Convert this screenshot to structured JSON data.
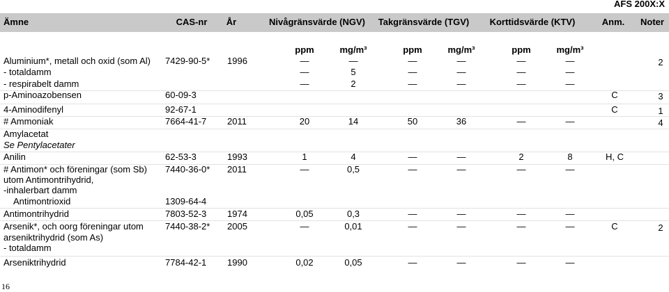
{
  "header": {
    "doc_id": "AFS 200X:X",
    "columns": [
      "Ämne",
      "CAS-nr",
      "År",
      "Nivågränsvärde (NGV)",
      "Takgränsvärde (TGV)",
      "Korttidsvärde (KTV)",
      "Anm.",
      "Noter"
    ],
    "units": [
      "ppm",
      "mg/m³",
      "ppm",
      "mg/m³",
      "ppm",
      "mg/m³"
    ]
  },
  "table": {
    "rows": [
      [
        "Aluminium*, metall och oxid (som Al)",
        "7429-90-5*",
        "1996",
        "—",
        "—",
        "—",
        "—",
        "—",
        "—",
        null,
        "2"
      ],
      [
        "- totaldamm",
        null,
        null,
        "—",
        "5",
        "—",
        "—",
        "—",
        "—",
        null,
        null
      ],
      [
        "- respirabelt damm",
        null,
        null,
        "—",
        "2",
        "—",
        "—",
        "—",
        "—",
        null,
        null
      ],
      [
        "p-Aminoazobensen",
        "60-09-3",
        null,
        null,
        null,
        null,
        null,
        null,
        null,
        "C",
        "3"
      ],
      [
        "4-Aminodifenyl",
        "92-67-1",
        null,
        null,
        null,
        null,
        null,
        null,
        null,
        "C",
        "1"
      ],
      [
        "# Ammoniak",
        "7664-41-7",
        "2011",
        "20",
        "14",
        "50",
        "36",
        "—",
        "—",
        null,
        "4"
      ],
      [
        "Amylacetat",
        null,
        null,
        null,
        null,
        null,
        null,
        null,
        null,
        null,
        null
      ],
      [
        "Se Pentylacetater",
        null,
        null,
        null,
        null,
        null,
        null,
        null,
        null,
        null,
        null
      ],
      [
        "Anilin",
        "62-53-3",
        "1993",
        "1",
        "4",
        "—",
        "—",
        "2",
        "8",
        "H, C",
        null
      ],
      [
        "# Antimon* och föreningar (som Sb)",
        "7440-36-0*",
        "2011",
        "—",
        "0,5",
        "—",
        "—",
        "—",
        "—",
        null,
        null
      ],
      [
        "utom Antimontrihydrid,",
        null,
        null,
        null,
        null,
        null,
        null,
        null,
        null,
        null,
        null
      ],
      [
        "-inhalerbart damm",
        null,
        null,
        null,
        null,
        null,
        null,
        null,
        null,
        null,
        null
      ],
      [
        "Antimontrioxid",
        "1309-64-4",
        null,
        null,
        null,
        null,
        null,
        null,
        null,
        null,
        null
      ],
      [
        "Antimontrihydrid",
        "7803-52-3",
        "1974",
        "0,05",
        "0,3",
        "—",
        "—",
        "—",
        "—",
        null,
        null
      ],
      [
        "Arsenik*, och oorg föreningar utom",
        "7440-38-2*",
        "2005",
        "—",
        "0,01",
        "—",
        "—",
        "—",
        "—",
        "C",
        "2"
      ],
      [
        "arseniktrihydrid (som As)",
        null,
        null,
        null,
        null,
        null,
        null,
        null,
        null,
        null,
        null
      ],
      [
        "- totaldamm",
        null,
        null,
        null,
        null,
        null,
        null,
        null,
        null,
        null,
        null
      ],
      [
        "Arseniktrihydrid",
        "7784-42-1",
        "1990",
        "0,02",
        "0,05",
        "—",
        "—",
        "—",
        "—",
        null,
        null
      ]
    ]
  },
  "footer": {
    "page_number": "16"
  }
}
